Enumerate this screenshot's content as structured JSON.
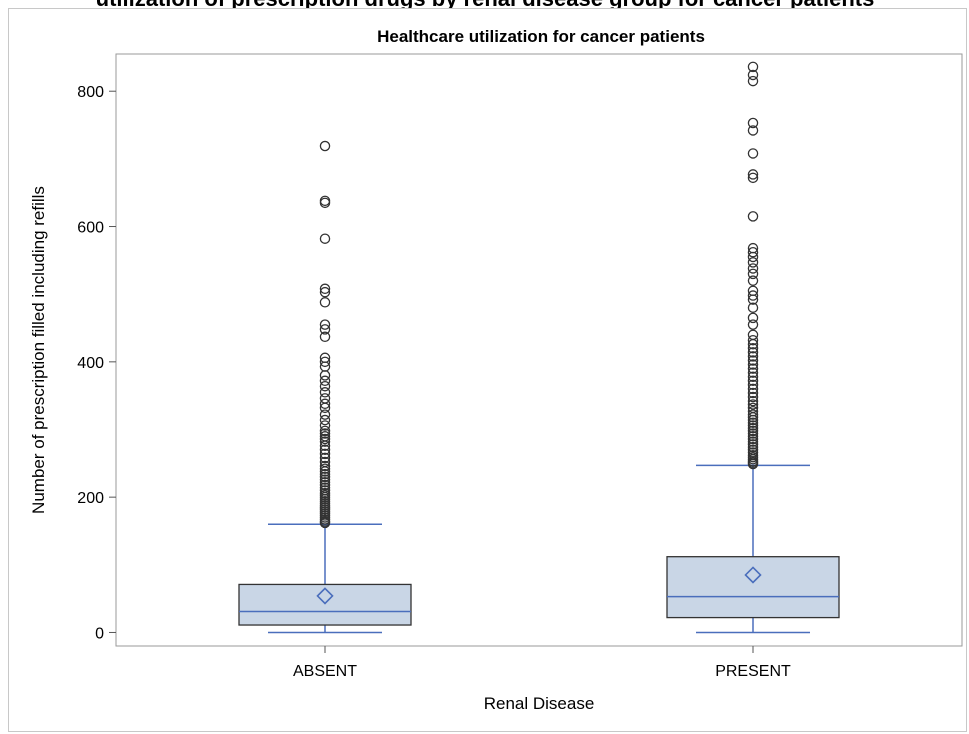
{
  "page": {
    "clipped_heading": "utilization of prescription drugs by renal disease group for cancer patients"
  },
  "chart_data": {
    "type": "box",
    "title": "Healthcare utilization for cancer patients",
    "xlabel": "Renal Disease",
    "ylabel": "Number of prescription filled including refills",
    "categories": [
      "ABSENT",
      "PRESENT"
    ],
    "ylim": [
      -20,
      855
    ],
    "yticks": [
      0,
      200,
      400,
      600,
      800
    ],
    "grid": false,
    "legend": "none",
    "colors": {
      "box_fill": "#c9d6e6",
      "box_edge": "#333333",
      "whisker": "#4a6ebc",
      "median": "#4a6ebc",
      "mean_marker": "#4a6ebc",
      "outlier": "#333333"
    },
    "series": [
      {
        "category": "ABSENT",
        "min": 0,
        "q1": 11,
        "median": 31,
        "q3": 71,
        "whisker_high": 160,
        "mean": 54,
        "outliers": [
          162,
          164,
          167,
          170,
          173,
          176,
          179,
          182,
          185,
          188,
          191,
          194,
          197,
          200,
          203,
          206,
          210,
          214,
          218,
          222,
          226,
          230,
          234,
          238,
          242,
          246,
          252,
          258,
          264,
          270,
          276,
          282,
          286,
          290,
          294,
          298,
          306,
          314,
          322,
          332,
          338,
          346,
          355,
          364,
          372,
          380,
          393,
          400,
          406,
          437,
          448,
          455,
          488,
          503,
          508,
          582,
          635,
          638,
          719
        ]
      },
      {
        "category": "PRESENT",
        "min": 0,
        "q1": 22,
        "median": 53,
        "q3": 112,
        "whisker_high": 247,
        "mean": 85,
        "outliers": [
          249,
          251,
          253,
          256,
          259,
          262,
          266,
          270,
          274,
          278,
          282,
          286,
          290,
          294,
          298,
          302,
          306,
          310,
          314,
          318,
          322,
          327,
          332,
          337,
          342,
          348,
          354,
          360,
          366,
          372,
          378,
          384,
          390,
          396,
          402,
          408,
          414,
          420,
          426,
          432,
          440,
          455,
          465,
          480,
          492,
          498,
          505,
          520,
          530,
          538,
          547,
          555,
          562,
          568,
          615,
          672,
          677,
          708,
          742,
          753,
          815,
          824,
          836
        ]
      }
    ]
  }
}
